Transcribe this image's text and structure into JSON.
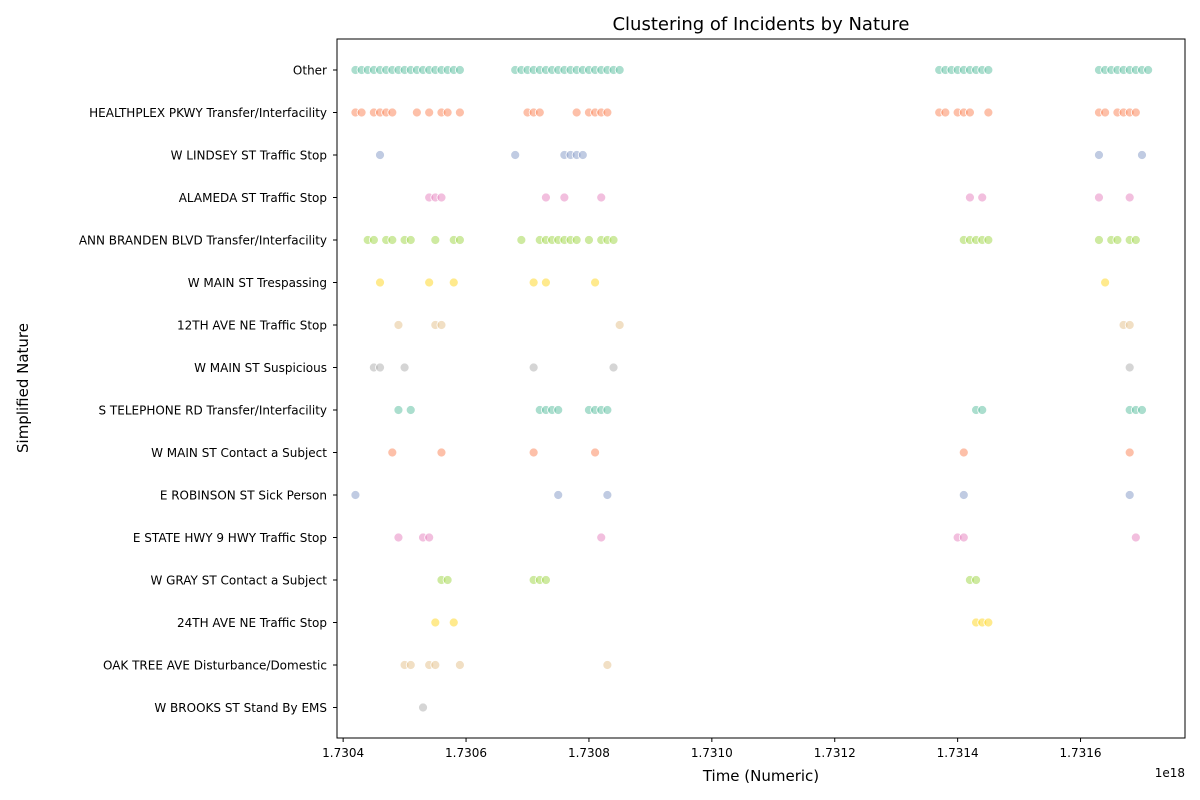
{
  "chart_data": {
    "type": "scatter",
    "title": "Clustering of Incidents by Nature",
    "xlabel": "Time (Numeric)",
    "ylabel": "Simplified Nature",
    "x_offset_label": "1e18",
    "xlim": [
      1.73039,
      1.73177
    ],
    "x_ticks": [
      1.7304,
      1.7306,
      1.7308,
      1.731,
      1.7312,
      1.7314,
      1.7316
    ],
    "x_tick_labels": [
      "1.7304",
      "1.7306",
      "1.7308",
      "1.7310",
      "1.7312",
      "1.7314",
      "1.7316"
    ],
    "grid": false,
    "legend": "none",
    "categories": [
      "Other",
      "HEALTHPLEX PKWY Transfer/Interfacility",
      "W LINDSEY ST Traffic Stop",
      "ALAMEDA ST Traffic Stop",
      "ANN BRANDEN BLVD Transfer/Interfacility",
      "W MAIN ST Trespassing",
      "12TH AVE NE Traffic Stop",
      "W MAIN ST Suspicious",
      "S TELEPHONE RD Transfer/Interfacility",
      "W MAIN ST Contact a Subject",
      "E ROBINSON ST Sick Person",
      "E STATE HWY 9 HWY Traffic Stop",
      "W GRAY ST Contact a Subject",
      "24TH AVE NE Traffic Stop",
      "OAK TREE AVE Disturbance/Domestic",
      "W BROOKS ST Stand By EMS"
    ],
    "colors": [
      "#66c2a5",
      "#fc8d62",
      "#8da0cb",
      "#e78ac3",
      "#a6d854",
      "#ffd92f",
      "#e5c494",
      "#b3b3b3",
      "#66c2a5",
      "#fc8d62",
      "#8da0cb",
      "#e78ac3",
      "#a6d854",
      "#ffd92f",
      "#e5c494",
      "#b3b3b3"
    ],
    "series": [
      {
        "x": [
          1.73042,
          1.73043,
          1.73044,
          1.73045,
          1.73046,
          1.73047,
          1.73048,
          1.73049,
          1.7305,
          1.73051,
          1.73052,
          1.73053,
          1.73054,
          1.73055,
          1.73056,
          1.73057,
          1.73058,
          1.73059,
          1.73068,
          1.73069,
          1.7307,
          1.73071,
          1.73072,
          1.73073,
          1.73074,
          1.73075,
          1.73076,
          1.73077,
          1.73078,
          1.73079,
          1.7308,
          1.73081,
          1.73082,
          1.73083,
          1.73084,
          1.73085,
          1.73137,
          1.73138,
          1.73139,
          1.7314,
          1.73141,
          1.73142,
          1.73143,
          1.73144,
          1.73145,
          1.73163,
          1.73164,
          1.73165,
          1.73166,
          1.73167,
          1.73168,
          1.73169,
          1.7317,
          1.73171
        ]
      },
      {
        "x": [
          1.73042,
          1.73043,
          1.73045,
          1.73046,
          1.73047,
          1.73048,
          1.73052,
          1.73054,
          1.73056,
          1.73057,
          1.73059,
          1.7307,
          1.73071,
          1.73072,
          1.73078,
          1.7308,
          1.73081,
          1.73082,
          1.73083,
          1.73137,
          1.73138,
          1.7314,
          1.73141,
          1.73142,
          1.73145,
          1.73163,
          1.73164,
          1.73166,
          1.73167,
          1.73168,
          1.73169
        ]
      },
      {
        "x": [
          1.73046,
          1.73068,
          1.73076,
          1.73077,
          1.73078,
          1.73079,
          1.73163,
          1.7317
        ]
      },
      {
        "x": [
          1.73054,
          1.73055,
          1.73056,
          1.73073,
          1.73076,
          1.73082,
          1.73142,
          1.73144,
          1.73163,
          1.73168
        ]
      },
      {
        "x": [
          1.73044,
          1.73045,
          1.73047,
          1.73048,
          1.7305,
          1.73051,
          1.73055,
          1.73058,
          1.73059,
          1.73069,
          1.73072,
          1.73073,
          1.73074,
          1.73075,
          1.73076,
          1.73077,
          1.73078,
          1.7308,
          1.73082,
          1.73083,
          1.73084,
          1.73141,
          1.73142,
          1.73143,
          1.73144,
          1.73145,
          1.73163,
          1.73165,
          1.73166,
          1.73168,
          1.73169
        ]
      },
      {
        "x": [
          1.73046,
          1.73054,
          1.73058,
          1.73071,
          1.73073,
          1.73081,
          1.73164
        ]
      },
      {
        "x": [
          1.73049,
          1.73055,
          1.73056,
          1.73085,
          1.73167,
          1.73168
        ]
      },
      {
        "x": [
          1.73045,
          1.73046,
          1.7305,
          1.73071,
          1.73084,
          1.73168
        ]
      },
      {
        "x": [
          1.73049,
          1.73051,
          1.73072,
          1.73073,
          1.73074,
          1.73075,
          1.7308,
          1.73081,
          1.73082,
          1.73083,
          1.73143,
          1.73144,
          1.73168,
          1.73169,
          1.7317
        ]
      },
      {
        "x": [
          1.73048,
          1.73056,
          1.73071,
          1.73081,
          1.73141,
          1.73168
        ]
      },
      {
        "x": [
          1.73042,
          1.73075,
          1.73083,
          1.73141,
          1.73168
        ]
      },
      {
        "x": [
          1.73049,
          1.73053,
          1.73054,
          1.73082,
          1.7314,
          1.73141,
          1.73169
        ]
      },
      {
        "x": [
          1.73056,
          1.73057,
          1.73071,
          1.73072,
          1.73073,
          1.73142,
          1.73143
        ]
      },
      {
        "x": [
          1.73055,
          1.73058,
          1.73143,
          1.73144,
          1.73145
        ]
      },
      {
        "x": [
          1.7305,
          1.73051,
          1.73054,
          1.73055,
          1.73059,
          1.73083
        ]
      },
      {
        "x": [
          1.73053
        ]
      }
    ]
  }
}
